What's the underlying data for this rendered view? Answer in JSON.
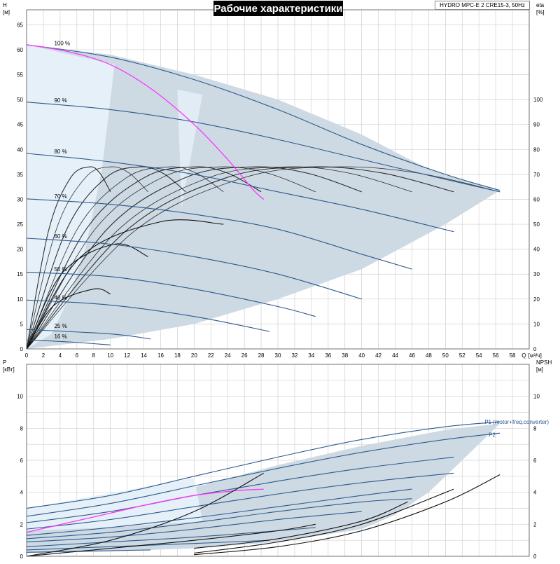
{
  "title": "Рабочие характеристики",
  "product": "HYDRO MPC-E 2 CRE15-3, 50Hz",
  "colors": {
    "envelope": "#cdd9e3",
    "envelope_light": "#e6f0f8",
    "curve_blue": "#2d5a8c",
    "curve_black": "#111111",
    "highlight": "#ff33ff",
    "grid": "#d0d0d0"
  },
  "chart_data": [
    {
      "type": "line",
      "panel": "head",
      "ylabel_left": "H",
      "yunit_left": "[м]",
      "ylabel_right": "eta",
      "yunit_right": "[%]",
      "xlabel": "Q",
      "xunit": "[м³/ч]",
      "xlim": [
        0,
        60
      ],
      "ylim": [
        0,
        68
      ],
      "eta_lim": [
        0,
        136
      ],
      "x_ticks": [
        0,
        2,
        4,
        6,
        8,
        10,
        12,
        14,
        16,
        18,
        20,
        22,
        24,
        26,
        28,
        30,
        32,
        34,
        36,
        38,
        40,
        42,
        44,
        46,
        48,
        50,
        52,
        54,
        56,
        58
      ],
      "y_ticks": [
        0,
        5,
        10,
        15,
        20,
        25,
        30,
        35,
        40,
        45,
        50,
        55,
        60,
        65
      ],
      "eta_ticks": [
        0,
        10,
        20,
        30,
        40,
        50,
        60,
        70,
        80,
        90,
        100
      ],
      "speed_labels": [
        {
          "text": "100 %",
          "x": 3.3,
          "y": 60.6
        },
        {
          "text": "90 %",
          "x": 3.3,
          "y": 49.2
        },
        {
          "text": "80 %",
          "x": 3.3,
          "y": 38.9
        },
        {
          "text": "70 %",
          "x": 3.3,
          "y": 29.9
        },
        {
          "text": "60 %",
          "x": 3.3,
          "y": 21.9
        },
        {
          "text": "50 %",
          "x": 3.3,
          "y": 15.3
        },
        {
          "text": "40 %",
          "x": 3.3,
          "y": 9.6
        },
        {
          "text": "25 %",
          "x": 3.3,
          "y": 3.9
        },
        {
          "text": "16 %",
          "x": 3.3,
          "y": 1.8
        }
      ],
      "envelope_polygon": [
        [
          0,
          0
        ],
        [
          0,
          61
        ],
        [
          10,
          59
        ],
        [
          20,
          55
        ],
        [
          30,
          50
        ],
        [
          40,
          43
        ],
        [
          48,
          36
        ],
        [
          56.5,
          31.8
        ],
        [
          50,
          25
        ],
        [
          40,
          16
        ],
        [
          30,
          10
        ],
        [
          20,
          5
        ],
        [
          10,
          2
        ]
      ],
      "envelope_light_polygon": [
        [
          0,
          61
        ],
        [
          10.5,
          57
        ],
        [
          9,
          36
        ],
        [
          7,
          20
        ],
        [
          5,
          10
        ],
        [
          3,
          3
        ],
        [
          0,
          0
        ]
      ],
      "envelope_light_polygon2": [
        [
          18,
          52
        ],
        [
          21,
          51
        ],
        [
          19,
          33
        ],
        [
          18.5,
          28
        ]
      ],
      "head_curves": [
        {
          "name": "100 %",
          "x": [
            0,
            10,
            20,
            30,
            40,
            50,
            56.5
          ],
          "y": [
            61,
            58.5,
            54,
            48,
            41,
            35,
            31.8
          ]
        },
        {
          "name": "90 %",
          "x": [
            0,
            10,
            20,
            30,
            40,
            50,
            56.5
          ],
          "y": [
            49.5,
            48,
            45.5,
            42,
            38,
            34,
            31.5
          ]
        },
        {
          "name": "80 %",
          "x": [
            0,
            10,
            20,
            30,
            40,
            51
          ],
          "y": [
            39.2,
            37.5,
            35,
            31.5,
            28,
            23.5
          ]
        },
        {
          "name": "70 %",
          "x": [
            0,
            10,
            20,
            30,
            40,
            46
          ],
          "y": [
            30.1,
            29,
            27,
            24,
            19,
            16
          ]
        },
        {
          "name": "60 %",
          "x": [
            0,
            10,
            20,
            30,
            40
          ],
          "y": [
            22.2,
            21,
            18.5,
            15,
            10
          ]
        },
        {
          "name": "50 %",
          "x": [
            0,
            10,
            20,
            30,
            34.5
          ],
          "y": [
            15.4,
            14.5,
            12,
            8.5,
            6.5
          ]
        },
        {
          "name": "40 %",
          "x": [
            0,
            10,
            20,
            29
          ],
          "y": [
            9.8,
            8.8,
            6.5,
            3.5
          ]
        },
        {
          "name": "25 %",
          "x": [
            0,
            10,
            14.8
          ],
          "y": [
            3.9,
            3,
            2
          ]
        },
        {
          "name": "16 %",
          "x": [
            0,
            5,
            10
          ],
          "y": [
            1.8,
            1.4,
            0.8
          ]
        }
      ],
      "highlight_curve": {
        "x": [
          0,
          5,
          10,
          15,
          20,
          24,
          27,
          28.3
        ],
        "y": [
          61,
          59.6,
          57,
          52,
          45,
          38,
          32,
          30
        ]
      },
      "eta_curves": [
        {
          "peak_x": 7.5,
          "peak_eta": 73,
          "end_x": 10,
          "end_eta": 63
        },
        {
          "peak_x": 10,
          "peak_eta": 73,
          "end_x": 14.5,
          "end_eta": 63
        },
        {
          "peak_x": 13.5,
          "peak_eta": 73,
          "end_x": 19,
          "end_eta": 63
        },
        {
          "peak_x": 17,
          "peak_eta": 73,
          "end_x": 23.5,
          "end_eta": 63
        },
        {
          "peak_x": 20,
          "peak_eta": 73,
          "end_x": 28,
          "end_eta": 63
        },
        {
          "peak_x": 23,
          "peak_eta": 73,
          "end_x": 34.5,
          "end_eta": 63
        },
        {
          "peak_x": 27,
          "peak_eta": 73,
          "end_x": 40,
          "end_eta": 63
        },
        {
          "peak_x": 31,
          "peak_eta": 73,
          "end_x": 46,
          "end_eta": 63
        },
        {
          "peak_x": 34,
          "peak_eta": 73,
          "end_x": 51,
          "end_eta": 63
        },
        {
          "peak_x": 37,
          "peak_eta": 73,
          "end_x": 56.5,
          "end_eta": 63
        }
      ],
      "eta_curves_small": [
        {
          "peak_x": 8,
          "peak_eta": 24,
          "end_x": 10,
          "end_eta": 22
        },
        {
          "peak_x": 10.5,
          "peak_eta": 42,
          "end_x": 14.5,
          "end_eta": 37
        },
        {
          "peak_x": 16,
          "peak_eta": 51,
          "end_x": 23.5,
          "end_eta": 50
        }
      ]
    },
    {
      "type": "line",
      "panel": "power",
      "ylabel_left": "P",
      "yunit_left": "[кВт]",
      "ylabel_right": "NPSH",
      "yunit_right": "[м]",
      "xlim": [
        0,
        60
      ],
      "ylim": [
        0,
        12
      ],
      "y_ticks": [
        0,
        2,
        4,
        6,
        8,
        10
      ],
      "npsh_ticks": [
        0,
        2,
        4,
        6,
        8,
        10
      ],
      "labels": [
        {
          "text": "P1 (motor+freq.converter)",
          "x": 54,
          "y": 8.4
        },
        {
          "text": "P2",
          "x": 54.5,
          "y": 7.6
        }
      ],
      "envelope_polygon": [
        [
          0,
          1.8
        ],
        [
          10,
          2.8
        ],
        [
          20,
          4.3
        ],
        [
          30,
          5.7
        ],
        [
          40,
          6.9
        ],
        [
          50,
          7.9
        ],
        [
          56.5,
          8.3
        ],
        [
          52,
          6
        ],
        [
          48,
          4
        ],
        [
          44,
          2.6
        ],
        [
          40,
          1.7
        ],
        [
          30,
          0.9
        ],
        [
          20,
          0.5
        ],
        [
          10,
          0.3
        ],
        [
          0,
          0.2
        ]
      ],
      "envelope_light_polygon": [
        [
          0,
          3
        ],
        [
          20,
          4.9
        ],
        [
          21,
          2.2
        ],
        [
          10,
          1.8
        ],
        [
          0,
          1.6
        ]
      ],
      "p1_curves": [
        {
          "x": [
            0,
            10,
            20,
            30,
            40,
            50,
            56.5
          ],
          "y": [
            3,
            3.8,
            5,
            6.2,
            7.3,
            8.1,
            8.4
          ]
        },
        {
          "x": [
            0,
            10,
            20,
            30,
            40,
            50,
            56.5
          ],
          "y": [
            2.5,
            3.3,
            4.4,
            5.5,
            6.5,
            7.3,
            7.7
          ]
        },
        {
          "x": [
            0,
            10,
            20,
            30,
            40,
            51
          ],
          "y": [
            2.1,
            2.8,
            3.8,
            4.7,
            5.5,
            6.2
          ]
        },
        {
          "x": [
            0,
            10,
            20,
            30,
            40,
            51
          ],
          "y": [
            1.7,
            2.3,
            3.1,
            3.9,
            4.6,
            5.2
          ]
        },
        {
          "x": [
            0,
            10,
            20,
            30,
            40,
            46
          ],
          "y": [
            1.3,
            1.8,
            2.4,
            3.1,
            3.8,
            4.2
          ]
        },
        {
          "x": [
            0,
            10,
            20,
            30,
            40,
            46
          ],
          "y": [
            1.1,
            1.5,
            2.1,
            2.8,
            3.4,
            3.6
          ]
        },
        {
          "x": [
            0,
            10,
            20,
            30,
            40
          ],
          "y": [
            0.9,
            1.2,
            1.7,
            2.3,
            2.8
          ]
        },
        {
          "x": [
            0,
            10,
            20,
            30,
            34.5
          ],
          "y": [
            0.6,
            0.9,
            1.2,
            1.6,
            1.8
          ]
        },
        {
          "x": [
            0,
            10,
            20,
            29
          ],
          "y": [
            0.4,
            0.6,
            0.8,
            1.0
          ]
        },
        {
          "x": [
            0,
            10,
            14.8
          ],
          "y": [
            0.25,
            0.35,
            0.4
          ]
        }
      ],
      "highlight_curve": {
        "x": [
          0,
          5,
          10,
          15,
          20,
          25,
          28.3
        ],
        "y": [
          1.5,
          2.1,
          2.7,
          3.3,
          3.8,
          4.1,
          4.2
        ]
      },
      "npsh_curves": [
        {
          "x": [
            0,
            10,
            20,
            28.3
          ],
          "y": [
            0,
            1.0,
            2.8,
            5.2
          ]
        },
        {
          "x": [
            0,
            10,
            20,
            30,
            34.5
          ],
          "y": [
            0,
            0.5,
            1.0,
            1.6,
            2.0
          ]
        },
        {
          "x": [
            20,
            30,
            40,
            45.5
          ],
          "y": [
            0.5,
            1.1,
            2.2,
            3.4
          ]
        },
        {
          "x": [
            20,
            30,
            40,
            51
          ],
          "y": [
            0.2,
            0.9,
            2.0,
            4.2
          ]
        },
        {
          "x": [
            20,
            30,
            40,
            50,
            56.5
          ],
          "y": [
            0.1,
            0.6,
            1.6,
            3.4,
            5.1
          ]
        }
      ]
    }
  ]
}
